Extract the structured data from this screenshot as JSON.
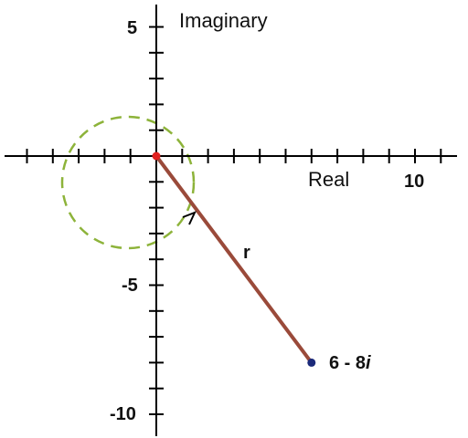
{
  "labels": {
    "imaginary_axis": "Imaginary",
    "real_axis": "Real",
    "radius": "r"
  },
  "ticks": {
    "y_top": "5",
    "y_mid": "-5",
    "y_bottom": "-10",
    "x_right": "10"
  },
  "point": {
    "label_main": "6 - 8",
    "label_i": "i",
    "re": 6,
    "im": -8
  },
  "colors": {
    "axis": "#000000",
    "vector": "#9a4a3a",
    "origin": "#e02020",
    "point": "#1b2a7a",
    "circle": "#8db33a"
  }
}
